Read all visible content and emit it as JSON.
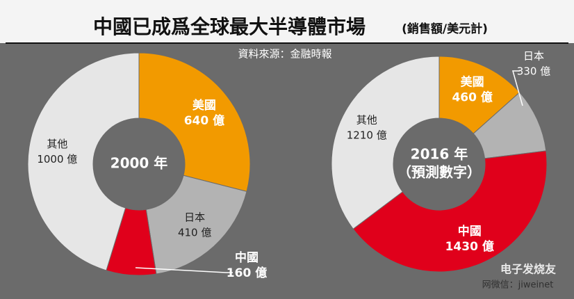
{
  "header": {
    "title": "中國已成爲全球最大半導體市場",
    "subtitle": "(銷售額/美元計)",
    "source": "資料來源：金融時報"
  },
  "watermark": {
    "brand": "电子发烧友",
    "line": "网微信：jiweinet"
  },
  "chart_data": [
    {
      "type": "donut",
      "center_label": [
        "2000 年"
      ],
      "categories": [
        "美國",
        "日本",
        "中國",
        "其他"
      ],
      "values": [
        640,
        410,
        160,
        1000
      ],
      "value_labels": [
        "640 億",
        "410 億",
        "160 億",
        "1000 億"
      ],
      "colors": [
        "#f29a00",
        "#b3b3b3",
        "#e0001b",
        "#e6e6e6"
      ]
    },
    {
      "type": "donut",
      "center_label": [
        "2016 年",
        "（預測數字）"
      ],
      "categories": [
        "美國",
        "日本",
        "中國",
        "其他"
      ],
      "values": [
        460,
        330,
        1430,
        1210
      ],
      "value_labels": [
        "460 億",
        "330 億",
        "1430 億",
        "1210 億"
      ],
      "colors": [
        "#f29a00",
        "#b3b3b3",
        "#e0001b",
        "#e6e6e6"
      ]
    }
  ]
}
